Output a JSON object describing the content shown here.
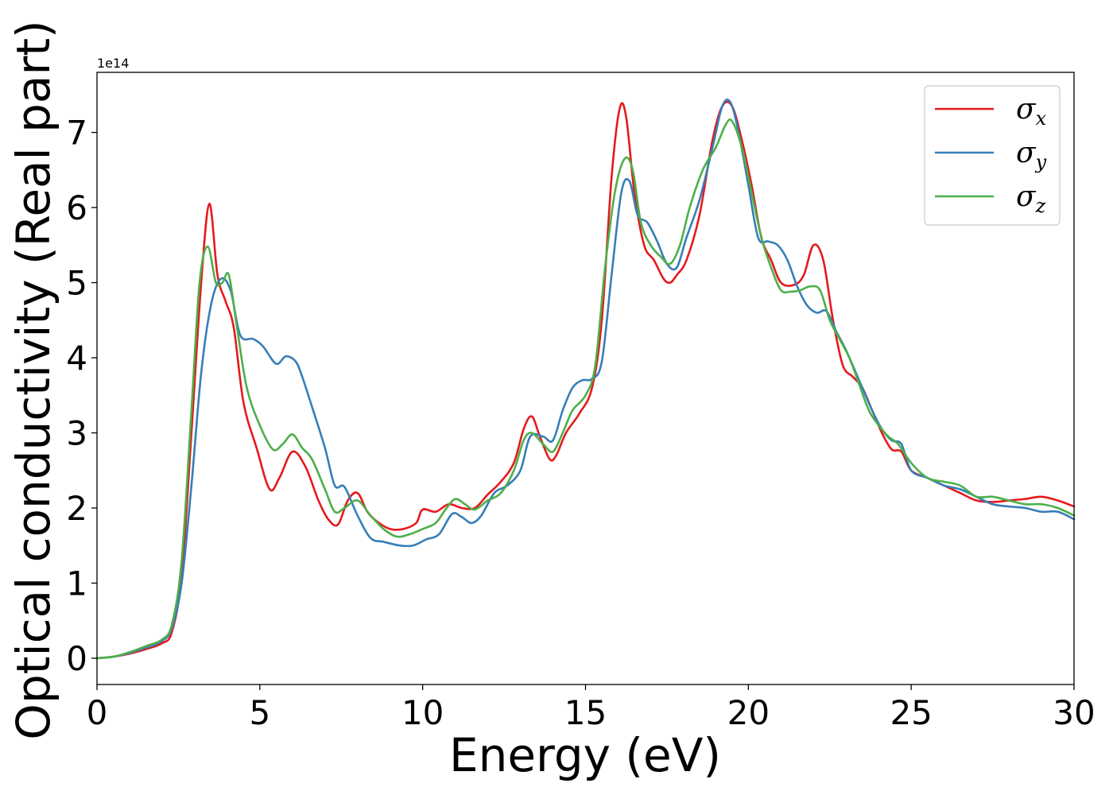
{
  "chart_data": {
    "type": "line",
    "xlabel": "Energy (eV)",
    "ylabel": "Optical conductivity (Real part)",
    "y_offset_label": "1e14",
    "xlim": [
      0,
      30
    ],
    "ylim": [
      -0.35,
      7.8
    ],
    "x_ticks": [
      0,
      5,
      10,
      15,
      20,
      25,
      30
    ],
    "y_ticks": [
      0,
      1,
      2,
      3,
      4,
      5,
      6,
      7
    ],
    "grid": false,
    "legend_position": "top-right",
    "series": [
      {
        "name": "σx",
        "symbol": "σ",
        "subscript": "x",
        "color": "#e41a1c",
        "x": [
          0,
          0.5,
          1,
          1.5,
          2,
          2.3,
          2.6,
          2.9,
          3.2,
          3.45,
          3.7,
          3.95,
          4.2,
          4.5,
          4.9,
          5.3,
          5.6,
          6,
          6.4,
          6.8,
          7.1,
          7.4,
          7.7,
          8,
          8.3,
          8.6,
          9,
          9.4,
          9.8,
          10,
          10.4,
          10.8,
          11.2,
          11.6,
          12,
          12.4,
          12.8,
          13.1,
          13.35,
          13.6,
          13.9,
          14.1,
          14.4,
          14.8,
          15.2,
          15.5,
          15.8,
          16.05,
          16.25,
          16.5,
          16.8,
          17.1,
          17.4,
          17.6,
          17.8,
          18.1,
          18.5,
          18.9,
          19.2,
          19.5,
          19.8,
          20.1,
          20.4,
          20.7,
          21,
          21.4,
          21.7,
          22,
          22.3,
          22.6,
          22.9,
          23.2,
          23.5,
          23.8,
          24.1,
          24.4,
          24.7,
          25,
          25.5,
          26,
          26.5,
          27,
          27.5,
          28,
          28.5,
          29,
          29.5,
          30
        ],
        "values": [
          0,
          0.02,
          0.06,
          0.12,
          0.2,
          0.35,
          1.1,
          3.0,
          5.0,
          6.05,
          5.1,
          4.75,
          4.4,
          3.4,
          2.8,
          2.25,
          2.4,
          2.75,
          2.55,
          2.1,
          1.85,
          1.78,
          2.1,
          2.2,
          1.95,
          1.82,
          1.72,
          1.72,
          1.8,
          1.98,
          1.95,
          2.05,
          2.0,
          2.0,
          2.18,
          2.35,
          2.6,
          3.05,
          3.22,
          2.95,
          2.65,
          2.7,
          3.0,
          3.25,
          3.6,
          4.5,
          6.4,
          7.32,
          7.2,
          6.2,
          5.5,
          5.3,
          5.05,
          5.0,
          5.1,
          5.3,
          5.9,
          6.9,
          7.35,
          7.35,
          6.9,
          6.3,
          5.6,
          5.3,
          5.0,
          4.97,
          5.1,
          5.5,
          5.3,
          4.5,
          3.9,
          3.75,
          3.6,
          3.3,
          3.0,
          2.78,
          2.75,
          2.5,
          2.4,
          2.3,
          2.2,
          2.1,
          2.08,
          2.1,
          2.12,
          2.15,
          2.1,
          2.02
        ]
      },
      {
        "name": "σy",
        "symbol": "σ",
        "subscript": "y",
        "color": "#377eb8",
        "x": [
          0,
          0.5,
          1,
          1.5,
          2,
          2.3,
          2.6,
          2.9,
          3.2,
          3.5,
          3.8,
          4.1,
          4.4,
          4.8,
          5.1,
          5.5,
          5.8,
          6.1,
          6.3,
          6.6,
          7,
          7.3,
          7.6,
          8,
          8.4,
          8.8,
          9.3,
          9.7,
          10.1,
          10.5,
          10.9,
          11.2,
          11.5,
          11.8,
          12.2,
          12.6,
          13,
          13.3,
          13.7,
          14,
          14.3,
          14.6,
          14.9,
          15.2,
          15.5,
          15.8,
          16.1,
          16.35,
          16.6,
          16.9,
          17.2,
          17.5,
          17.8,
          18.1,
          18.5,
          18.9,
          19.2,
          19.45,
          19.7,
          20,
          20.3,
          20.6,
          20.9,
          21.2,
          21.5,
          21.8,
          22.1,
          22.4,
          22.7,
          23,
          23.4,
          23.8,
          24.1,
          24.4,
          24.7,
          25,
          25.5,
          26,
          26.5,
          27,
          27.5,
          28,
          28.5,
          29,
          29.5,
          30
        ],
        "values": [
          0,
          0.02,
          0.07,
          0.14,
          0.23,
          0.4,
          1.0,
          2.3,
          3.8,
          4.7,
          5.05,
          4.9,
          4.3,
          4.25,
          4.15,
          3.92,
          4.02,
          3.95,
          3.75,
          3.35,
          2.8,
          2.3,
          2.28,
          1.9,
          1.6,
          1.55,
          1.5,
          1.5,
          1.58,
          1.65,
          1.92,
          1.88,
          1.8,
          1.9,
          2.2,
          2.3,
          2.5,
          2.95,
          2.95,
          2.9,
          3.3,
          3.6,
          3.7,
          3.72,
          3.95,
          5.1,
          6.2,
          6.35,
          5.9,
          5.8,
          5.55,
          5.25,
          5.2,
          5.6,
          6.1,
          6.8,
          7.35,
          7.4,
          7.0,
          6.3,
          5.6,
          5.55,
          5.5,
          5.3,
          4.95,
          4.7,
          4.6,
          4.62,
          4.35,
          4.1,
          3.7,
          3.3,
          3.05,
          2.9,
          2.85,
          2.5,
          2.4,
          2.3,
          2.25,
          2.15,
          2.05,
          2.02,
          2.0,
          1.95,
          1.95,
          1.85
        ]
      },
      {
        "name": "σz",
        "symbol": "σ",
        "subscript": "z",
        "color": "#4daf4a",
        "x": [
          0,
          0.5,
          1,
          1.5,
          2,
          2.3,
          2.6,
          2.9,
          3.15,
          3.4,
          3.65,
          3.85,
          4.05,
          4.3,
          4.6,
          5,
          5.4,
          5.7,
          6,
          6.3,
          6.6,
          7,
          7.3,
          7.6,
          8,
          8.4,
          8.8,
          9.2,
          9.6,
          10,
          10.4,
          10.7,
          11,
          11.3,
          11.6,
          12,
          12.4,
          12.8,
          13.1,
          13.35,
          13.7,
          14,
          14.3,
          14.6,
          15,
          15.3,
          15.6,
          15.9,
          16.2,
          16.45,
          16.7,
          17,
          17.3,
          17.6,
          17.9,
          18.2,
          18.6,
          19,
          19.3,
          19.5,
          19.8,
          20.1,
          20.4,
          20.7,
          21,
          21.3,
          21.6,
          21.9,
          22.2,
          22.5,
          22.8,
          23.1,
          23.4,
          23.7,
          24,
          24.3,
          24.6,
          25,
          25.5,
          26,
          26.5,
          27,
          27.5,
          28,
          28.5,
          29,
          29.5,
          30
        ],
        "values": [
          0,
          0.02,
          0.08,
          0.16,
          0.25,
          0.45,
          1.3,
          3.3,
          5.0,
          5.48,
          5.0,
          5.0,
          5.1,
          4.4,
          3.6,
          3.1,
          2.78,
          2.85,
          2.98,
          2.8,
          2.65,
          2.25,
          1.95,
          2.0,
          2.1,
          1.9,
          1.72,
          1.62,
          1.65,
          1.72,
          1.8,
          1.98,
          2.12,
          2.05,
          1.98,
          2.1,
          2.2,
          2.5,
          2.9,
          3.0,
          2.85,
          2.75,
          3.0,
          3.3,
          3.5,
          3.9,
          5.2,
          6.2,
          6.65,
          6.5,
          5.8,
          5.5,
          5.35,
          5.25,
          5.5,
          6.0,
          6.5,
          6.8,
          7.1,
          7.15,
          6.8,
          6.2,
          5.6,
          5.2,
          4.9,
          4.88,
          4.9,
          4.95,
          4.9,
          4.5,
          4.25,
          4.0,
          3.65,
          3.3,
          3.1,
          2.95,
          2.85,
          2.6,
          2.4,
          2.35,
          2.3,
          2.15,
          2.15,
          2.1,
          2.05,
          2.05,
          2.0,
          1.9
        ]
      }
    ]
  }
}
